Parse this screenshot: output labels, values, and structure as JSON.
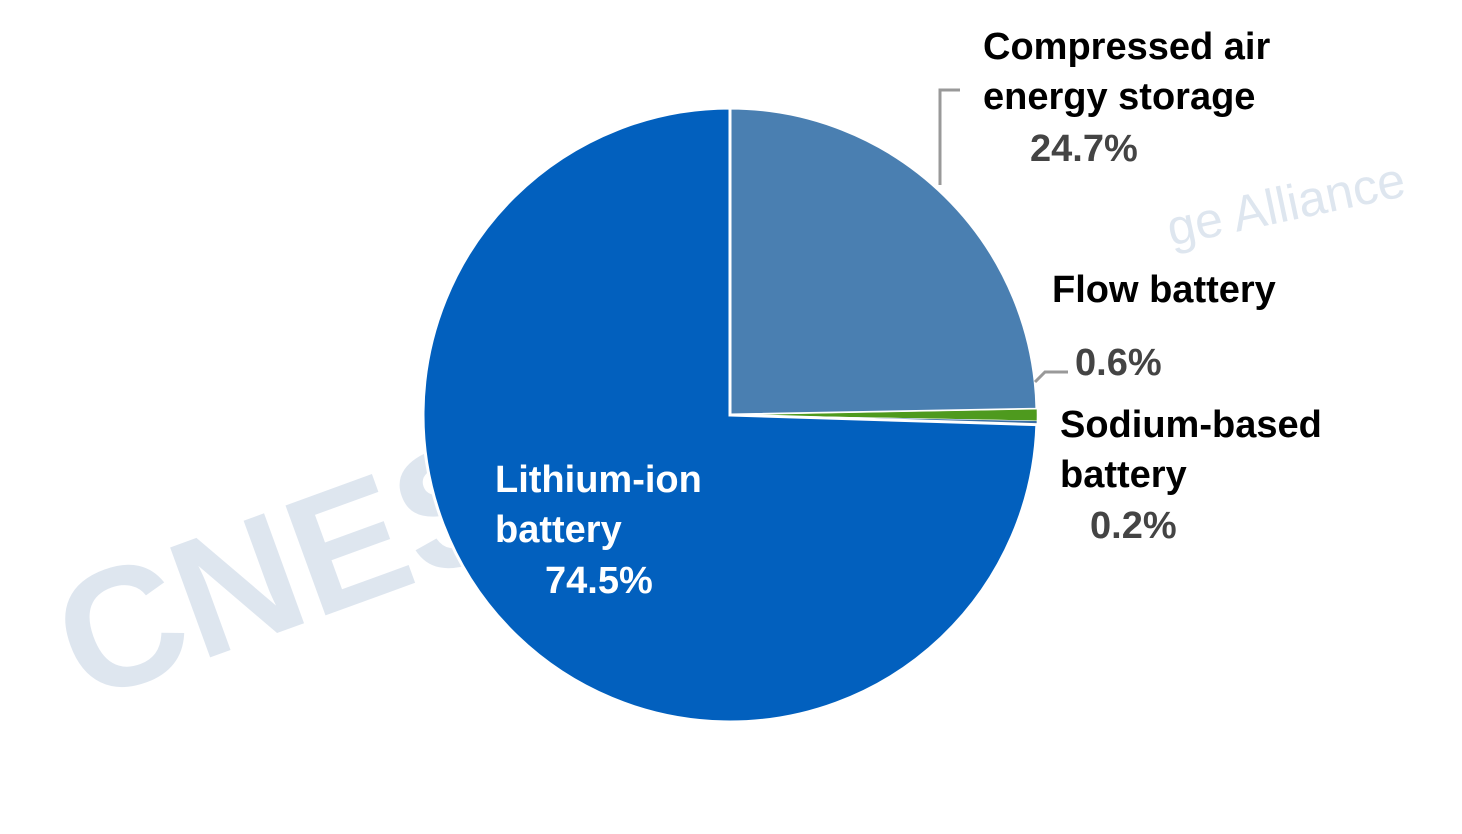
{
  "chart_data": {
    "type": "pie",
    "categories": [
      "Compressed air energy storage",
      "Flow battery",
      "Sodium-based battery",
      "Lithium-ion battery"
    ],
    "values": [
      24.7,
      0.6,
      0.2,
      74.5
    ],
    "value_labels": [
      "24.7%",
      "0.6%",
      "0.2%",
      "74.5%"
    ],
    "colors": [
      "#4a7fb1",
      "#4e9a1e",
      "#3a6ea5",
      "#0260be"
    ],
    "watermark": [
      "CNES",
      "ge Alliance"
    ]
  }
}
